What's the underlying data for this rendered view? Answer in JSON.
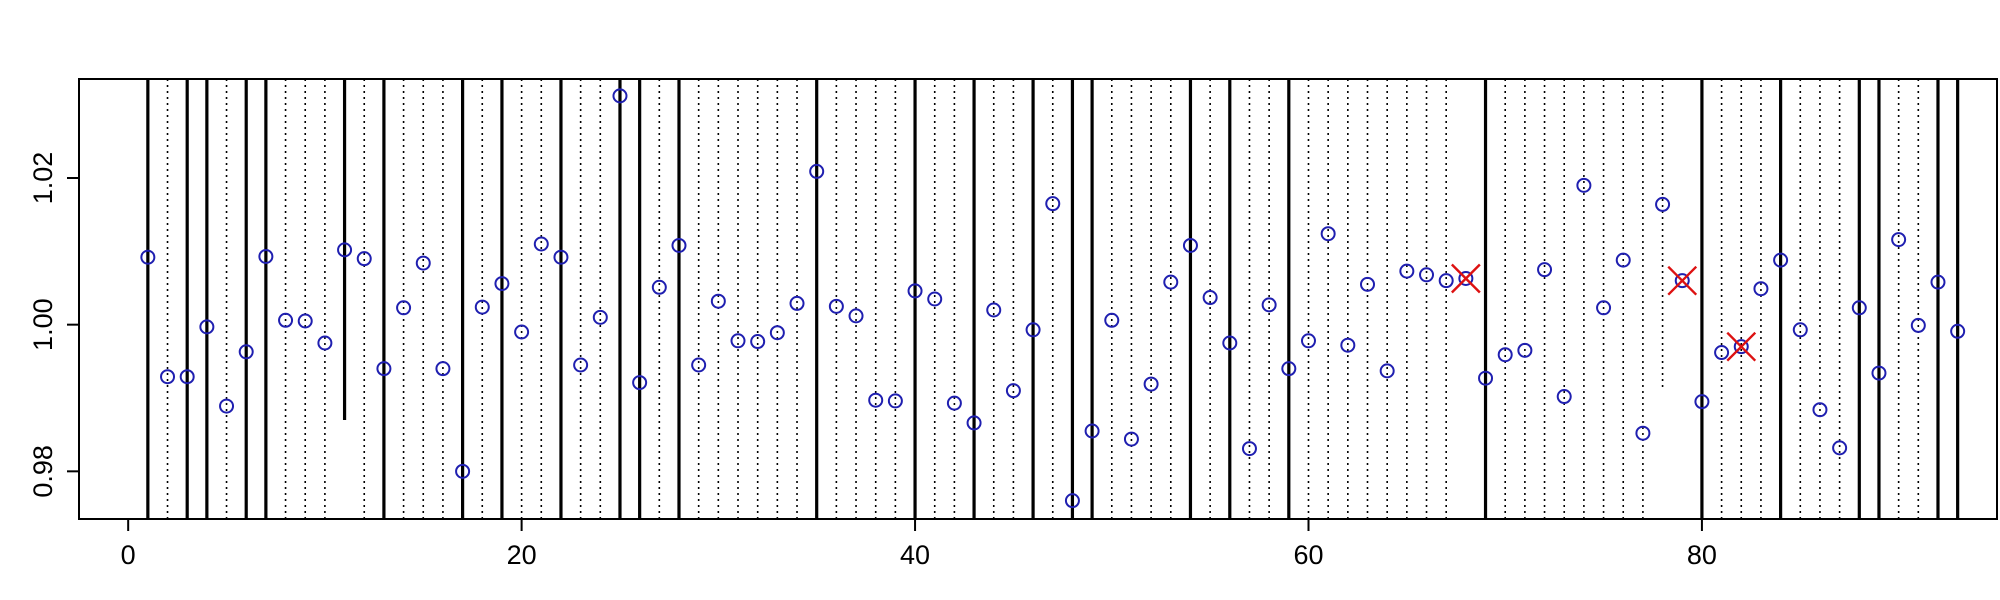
{
  "chart_data": {
    "type": "scatter",
    "title": "",
    "xlabel": "",
    "ylabel": "",
    "xlim": [
      -2.5,
      95
    ],
    "ylim": [
      0.9735,
      1.0335
    ],
    "x_ticks": [
      0,
      20,
      40,
      60,
      80
    ],
    "y_ticks": [
      0.98,
      1.0,
      1.02
    ],
    "x_tick_labels": [
      "0",
      "20",
      "40",
      "60",
      "80"
    ],
    "y_tick_labels": [
      "0.98",
      "1.00",
      "1.02"
    ],
    "colors": {
      "points": "#1f1fb0",
      "outliers": "#dd1111",
      "lines": "#000000"
    },
    "series": [
      {
        "name": "points",
        "marker": "circle",
        "x": [
          1,
          2,
          3,
          4,
          5,
          6,
          7,
          8,
          9,
          10,
          11,
          12,
          13,
          14,
          15,
          16,
          17,
          18,
          19,
          20,
          21,
          22,
          23,
          24,
          25,
          26,
          27,
          28,
          29,
          30,
          31,
          32,
          33,
          34,
          35,
          36,
          37,
          38,
          39,
          40,
          41,
          42,
          43,
          44,
          45,
          46,
          47,
          48,
          49,
          50,
          51,
          52,
          53,
          54,
          55,
          56,
          57,
          58,
          59,
          60,
          61,
          62,
          63,
          64,
          65,
          66,
          67,
          68,
          69,
          70,
          71,
          72,
          73,
          74,
          75,
          76,
          77,
          78,
          79,
          80,
          81,
          82,
          83,
          84,
          85,
          86,
          87,
          88,
          89,
          90,
          91,
          92,
          93
        ],
        "y": [
          1.0092,
          0.9929,
          0.9929,
          0.9997,
          0.9889,
          0.9963,
          1.0093,
          1.0006,
          1.0005,
          0.9975,
          1.0102,
          1.009,
          0.994,
          1.0023,
          1.0084,
          0.994,
          0.98,
          1.0024,
          1.0056,
          0.999,
          1.011,
          1.0092,
          0.9945,
          1.001,
          1.0312,
          0.9921,
          1.0051,
          1.0108,
          0.9945,
          1.0032,
          0.9978,
          0.9977,
          0.9989,
          1.0029,
          1.0209,
          1.0025,
          1.0012,
          0.9897,
          0.9896,
          1.0046,
          1.0035,
          0.9893,
          0.9866,
          1.002,
          0.991,
          0.9993,
          1.0165,
          0.976,
          0.9855,
          1.0006,
          0.9844,
          0.9919,
          1.0058,
          1.0108,
          1.0037,
          0.9975,
          0.9831,
          1.0027,
          0.994,
          0.9978,
          1.0124,
          0.9972,
          1.0055,
          0.9937,
          1.0073,
          1.0068,
          1.006,
          1.0063,
          0.9927,
          0.9959,
          0.9965,
          1.0075,
          0.9902,
          1.019,
          1.0023,
          1.0088,
          0.9852,
          1.0164,
          1.006,
          0.9895,
          0.9962,
          0.997,
          1.0049,
          1.0088,
          0.9993,
          0.9884,
          0.9832,
          1.0023,
          0.9934,
          1.0116,
          0.9999,
          1.0058,
          0.9991
        ]
      },
      {
        "name": "flagged",
        "marker": "x",
        "x": [
          68,
          79,
          82
        ],
        "y": [
          1.0063,
          1.006,
          0.997
        ]
      }
    ],
    "vertical_lines": {
      "solid_x": [
        1,
        3,
        4,
        6,
        7,
        11,
        13,
        17,
        19,
        22,
        25,
        26,
        28,
        35,
        40,
        43,
        46,
        48,
        49,
        54,
        56,
        59,
        69,
        80,
        84,
        88,
        89,
        92,
        93
      ],
      "dotted_x": [
        2,
        5,
        8,
        9,
        10,
        12,
        14,
        15,
        16,
        18,
        20,
        21,
        23,
        24,
        27,
        29,
        30,
        31,
        32,
        33,
        34,
        36,
        37,
        38,
        39,
        41,
        42,
        44,
        45,
        47,
        50,
        51,
        52,
        53,
        55,
        57,
        58,
        60,
        61,
        62,
        63,
        64,
        65,
        66,
        67,
        70,
        71,
        72,
        73,
        74,
        75,
        76,
        77,
        78,
        81,
        82,
        83,
        85,
        86,
        87,
        90,
        91
      ],
      "partial_solid": [
        {
          "x": 11,
          "y_from": 0.987,
          "y_to": 1.0335
        }
      ],
      "partial_dotted": [
        {
          "x": 78,
          "y_from": 0.9915,
          "y_to": 1.0335
        }
      ]
    }
  }
}
